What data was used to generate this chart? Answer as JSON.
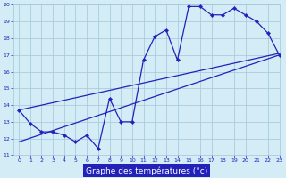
{
  "xlabel": "Graphe des températures (°c)",
  "hours": [
    0,
    1,
    2,
    3,
    4,
    5,
    6,
    7,
    8,
    9,
    10,
    11,
    12,
    13,
    14,
    15,
    16,
    17,
    18,
    19,
    20,
    21,
    22,
    23
  ],
  "temps": [
    13.7,
    12.9,
    12.4,
    12.4,
    12.2,
    11.8,
    12.2,
    11.4,
    14.4,
    13.0,
    13.0,
    16.7,
    18.1,
    18.5,
    16.7,
    19.9,
    19.9,
    19.4,
    19.4,
    19.8,
    19.4,
    19.0,
    18.3,
    17.0
  ],
  "diag_line1": {
    "x": [
      0,
      23
    ],
    "y": [
      13.7,
      17.1
    ]
  },
  "diag_line2": {
    "x": [
      0,
      23
    ],
    "y": [
      11.8,
      17.0
    ]
  },
  "ylim": [
    11,
    20
  ],
  "xlim": [
    -0.5,
    23
  ],
  "yticks": [
    11,
    12,
    13,
    14,
    15,
    16,
    17,
    18,
    19,
    20
  ],
  "xticks": [
    0,
    1,
    2,
    3,
    4,
    5,
    6,
    7,
    8,
    9,
    10,
    11,
    12,
    13,
    14,
    15,
    16,
    17,
    18,
    19,
    20,
    21,
    22,
    23
  ],
  "bg_color": "#d4ecf5",
  "line_color": "#2222bb",
  "grid_color": "#a0c8dc",
  "tick_color": "#2222bb",
  "xlabel_bg": "#2222bb",
  "xlabel_text_color": "#ffffff",
  "xlabel_fontsize": 6.5
}
